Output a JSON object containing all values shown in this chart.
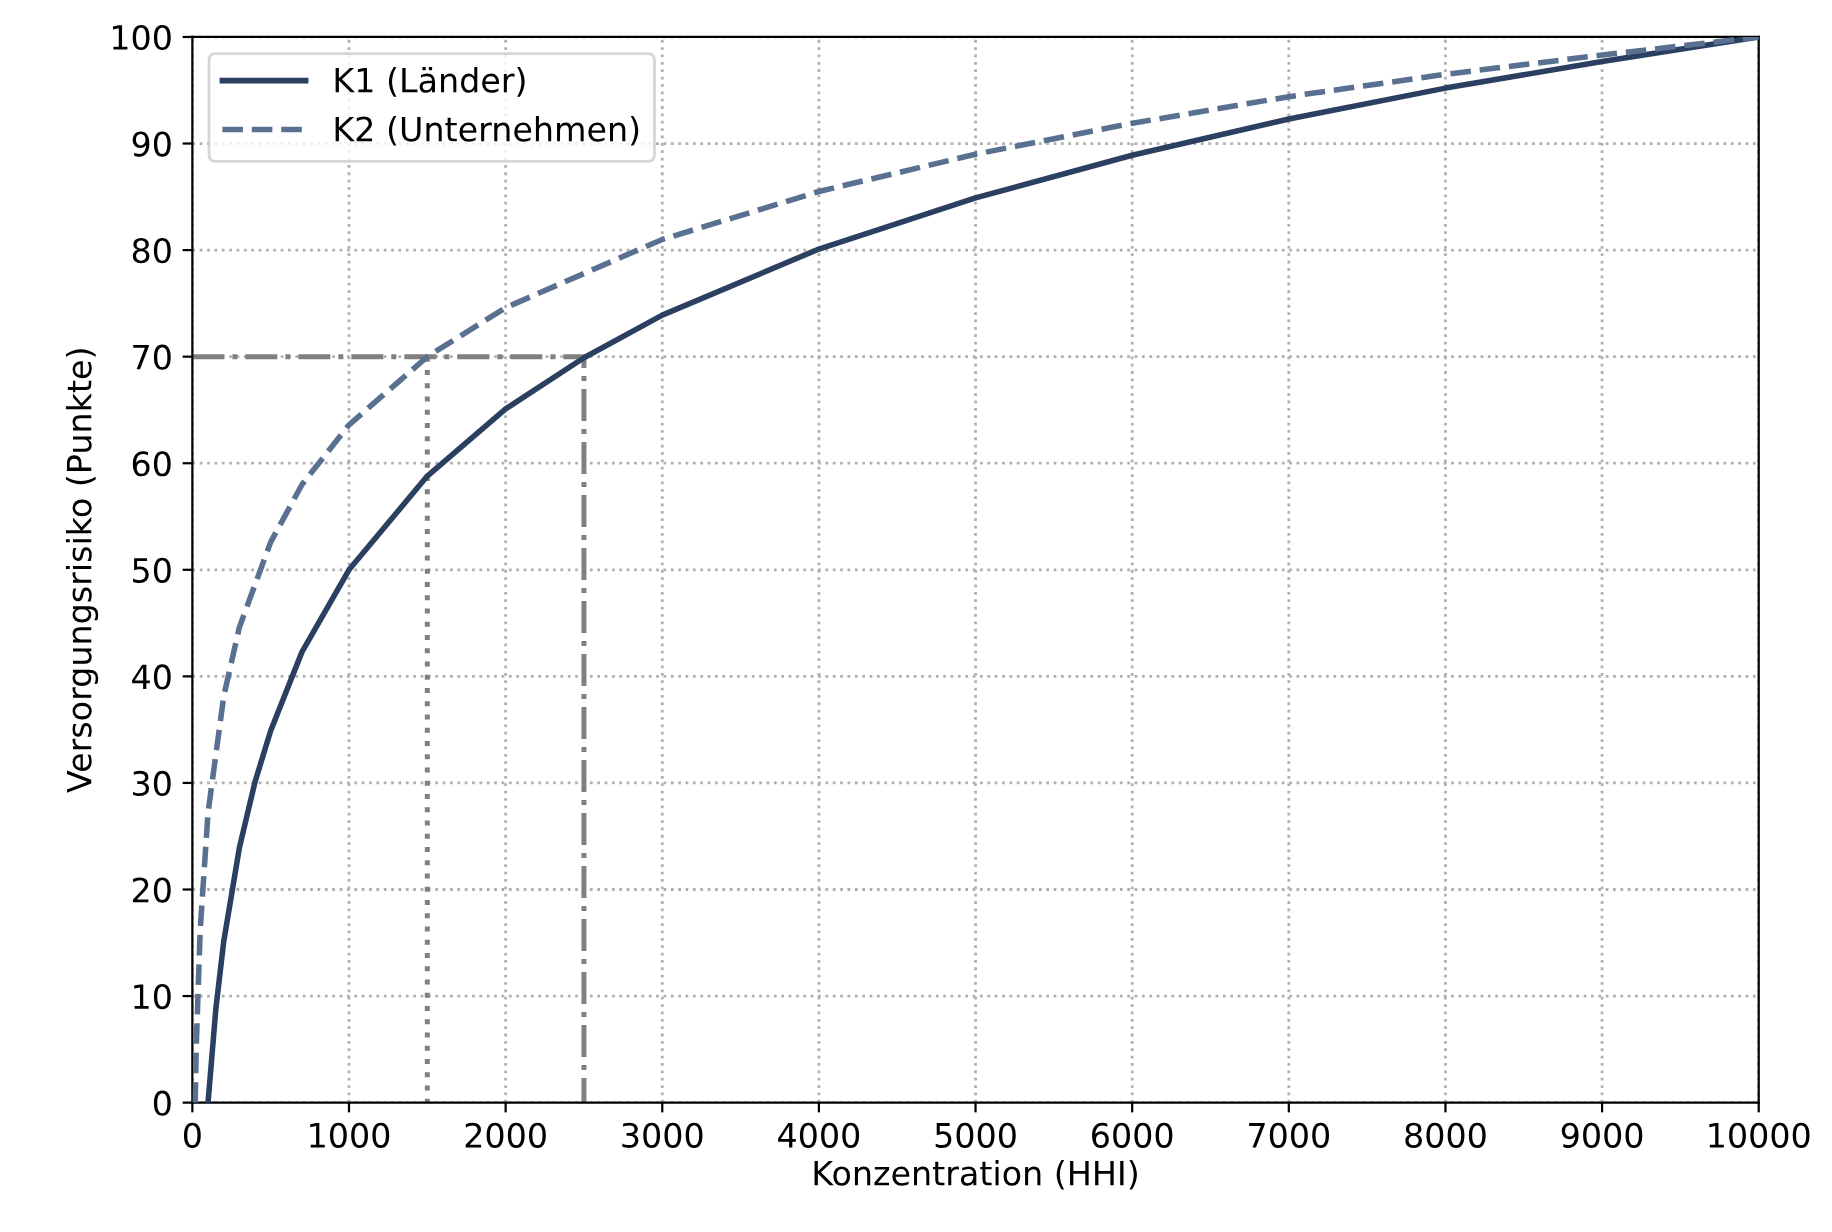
{
  "chart_data": {
    "type": "line",
    "xlabel": "Konzentration (HHI)",
    "ylabel": "Versorgungsrisiko (Punkte)",
    "xlim": [
      0,
      10000
    ],
    "ylim": [
      0,
      100
    ],
    "xticks": [
      0,
      1000,
      2000,
      3000,
      4000,
      5000,
      6000,
      7000,
      8000,
      9000,
      10000
    ],
    "yticks": [
      0,
      10,
      20,
      30,
      40,
      50,
      60,
      70,
      80,
      90,
      100
    ],
    "grid": true,
    "legend": "top left",
    "series": [
      {
        "name": "K1 (Länder)",
        "color": "#2b3f60",
        "line_style": "solid",
        "x": [
          100,
          150,
          200,
          300,
          400,
          500,
          700,
          1000,
          1500,
          2000,
          2500,
          3000,
          4000,
          5000,
          6000,
          7000,
          8000,
          9000,
          10000
        ],
        "values": [
          0,
          8.8,
          15.1,
          23.9,
          30.1,
          34.9,
          42.3,
          50,
          58.8,
          65.1,
          69.9,
          73.9,
          80.1,
          84.9,
          88.9,
          92.3,
          95.2,
          97.7,
          100
        ]
      },
      {
        "name": "K2 (Unternehmen)",
        "color": "#5a7090",
        "line_style": "dashed",
        "x": [
          18,
          25,
          50,
          100,
          200,
          300,
          500,
          700,
          1000,
          1500,
          2000,
          3000,
          4000,
          5000,
          6000,
          7000,
          8000,
          9000,
          10000
        ],
        "values": [
          0,
          5.3,
          16.2,
          27.2,
          38.1,
          44.6,
          52.6,
          58,
          63.6,
          70,
          74.6,
          81,
          85.5,
          89,
          91.9,
          94.4,
          96.5,
          98.3,
          100
        ]
      },
      {
        "color": "#808080",
        "line_style": "dashdot",
        "x": [
          0,
          2500,
          2500
        ],
        "values": [
          70,
          70,
          0
        ]
      },
      {
        "color": "#808080",
        "line_style": "dotted",
        "x": [
          1500,
          1500
        ],
        "values": [
          70,
          0
        ]
      }
    ]
  }
}
